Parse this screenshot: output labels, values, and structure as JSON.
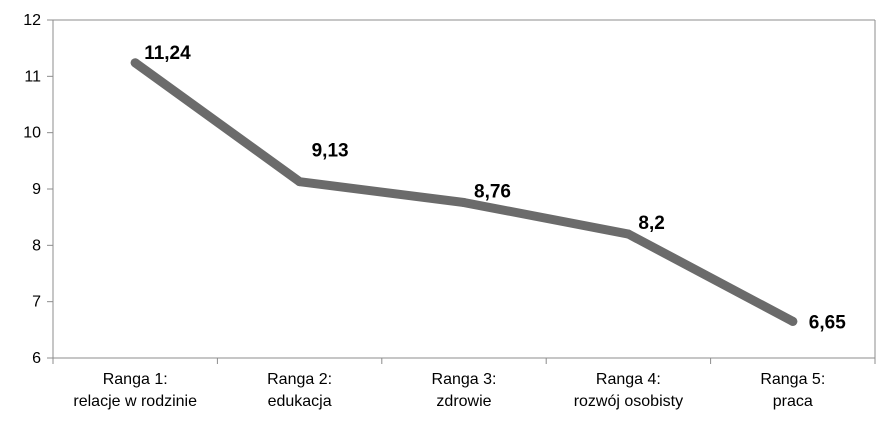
{
  "chart_data": {
    "type": "line",
    "title": "",
    "xlabel": "",
    "ylabel": "",
    "categories": [
      [
        "Ranga 1:",
        "relacje w rodzinie"
      ],
      [
        "Ranga 2:",
        "edukacja"
      ],
      [
        "Ranga 3:",
        "zdrowie"
      ],
      [
        "Ranga 4:",
        "rozwój osobisty"
      ],
      [
        "Ranga 5:",
        "praca"
      ]
    ],
    "series": [
      {
        "values": [
          11.24,
          9.13,
          8.76,
          8.2,
          6.65
        ],
        "labels": [
          "11,24",
          "9,13",
          "8,76",
          "8,2",
          "6,65"
        ],
        "color": "#6b6b6b"
      }
    ],
    "ylim": [
      6,
      12
    ],
    "yticks": [
      6,
      7,
      8,
      9,
      10,
      11,
      12
    ],
    "grid": false,
    "legend": "none"
  }
}
